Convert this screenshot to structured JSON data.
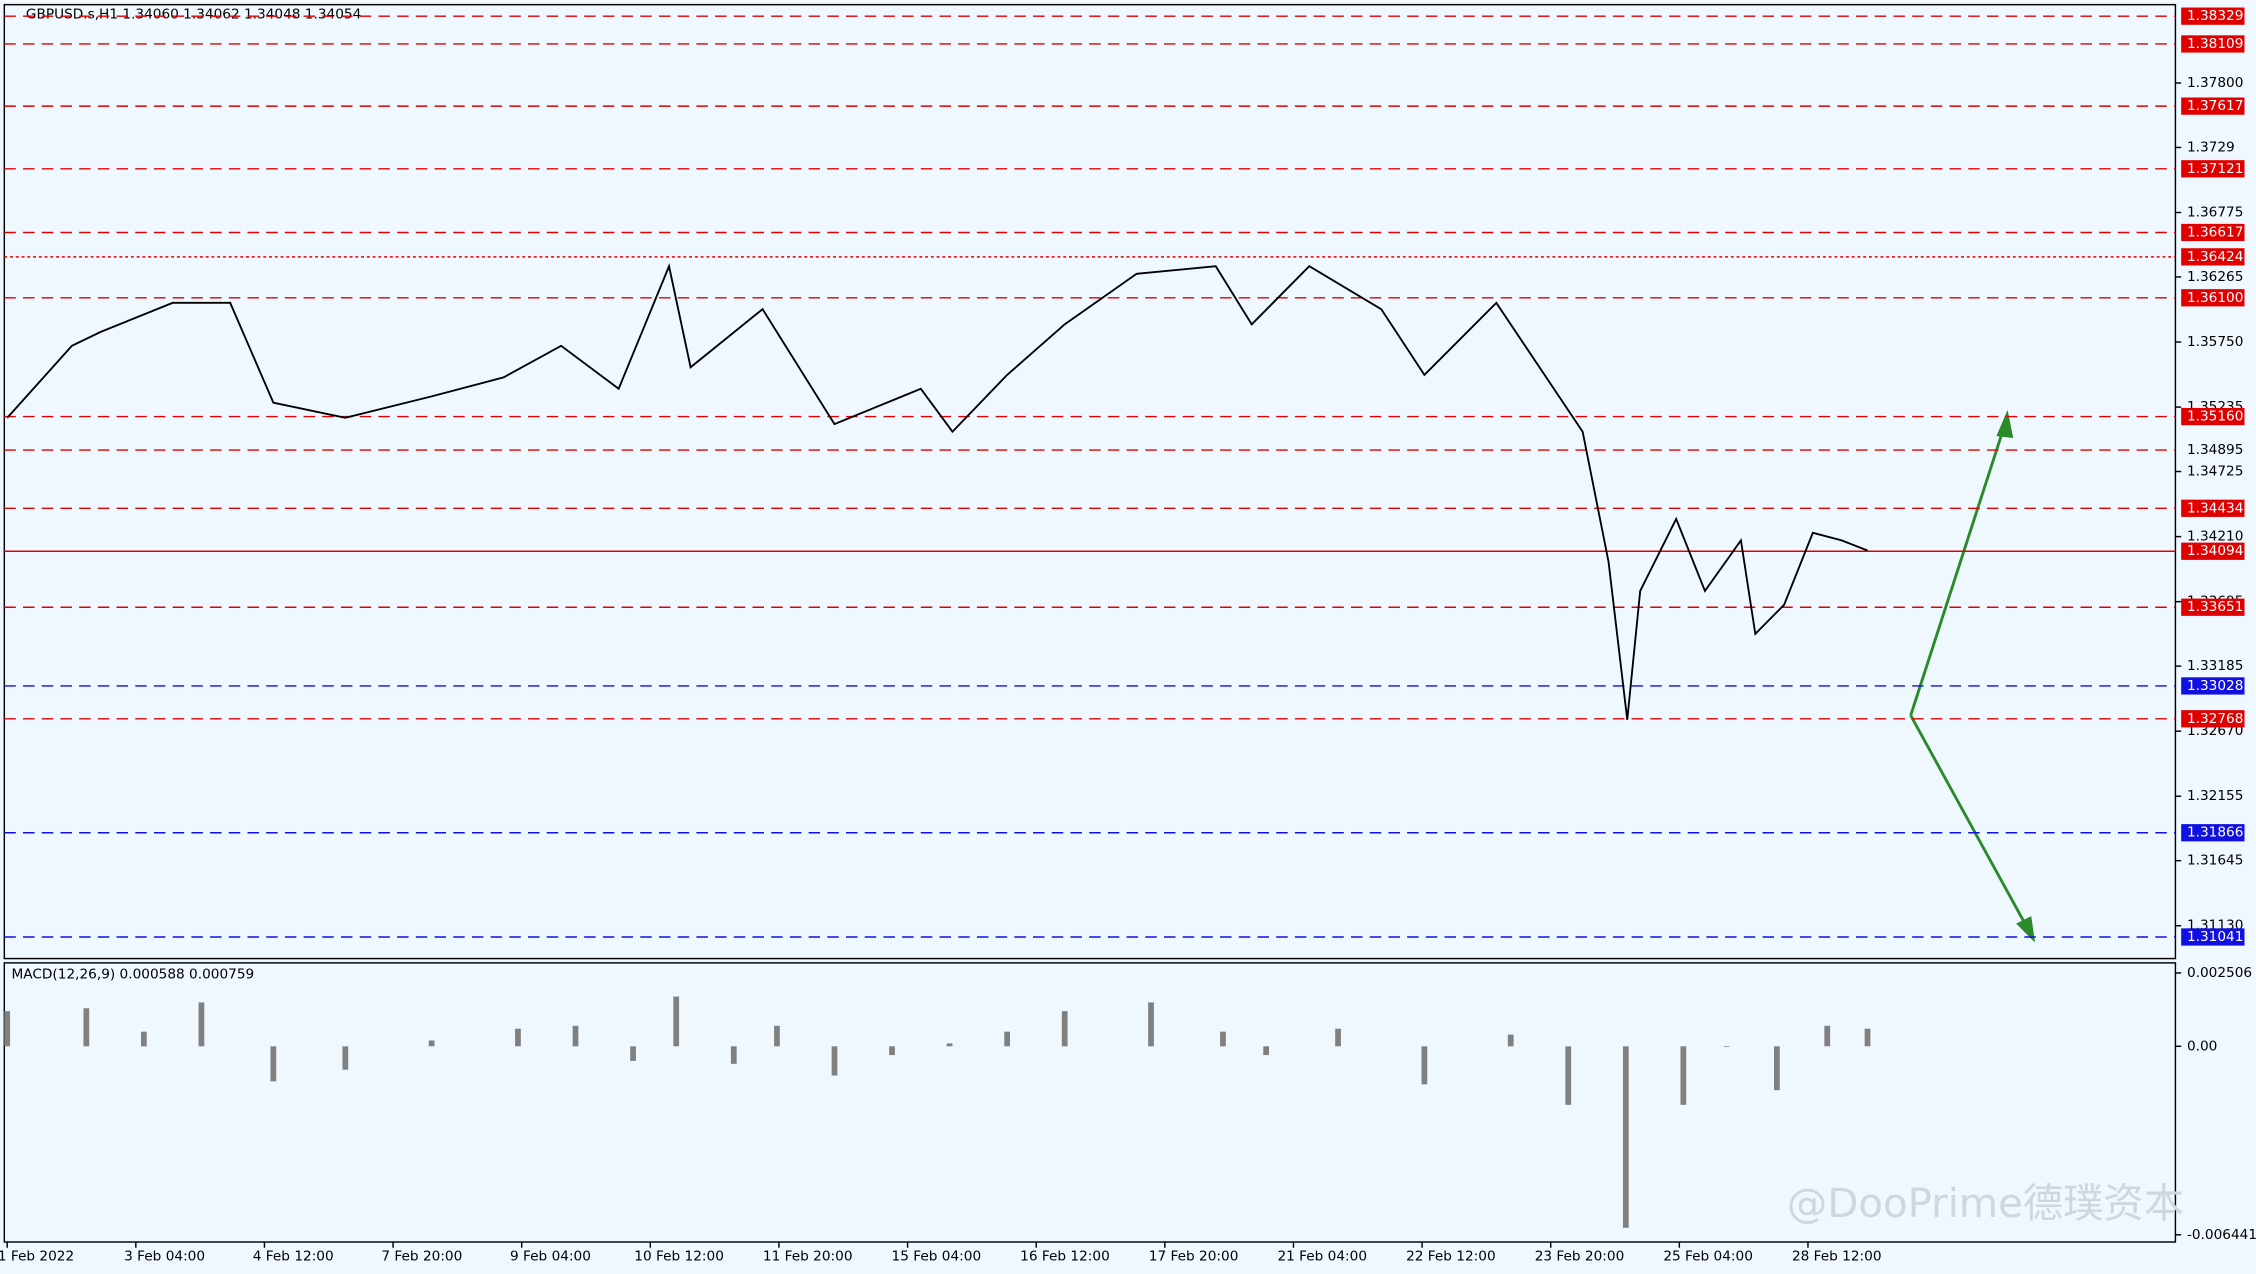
{
  "header": {
    "symbol_info": "GBPUSD.s,H1  1.34060 1.34062 1.34048 1.34054"
  },
  "chart_data": {
    "type": "candlestick-screen",
    "ylim": [
      1.38329,
      1.31041
    ],
    "yticks": [
      {
        "value": 1.378,
        "label": "1.37800"
      },
      1.3729,
      1.36775,
      1.36265,
      {
        "value": 1.3575,
        "label": "1.35750"
      },
      1.35235,
      1.34725,
      {
        "value": 1.3421,
        "label": "1.34210"
      },
      1.33695,
      1.33185,
      {
        "value": 1.3267,
        "label": "1.32670"
      },
      1.32155,
      1.31645,
      {
        "value": 1.3113,
        "label": "1.31130"
      }
    ],
    "levels": [
      {
        "value": 1.38329,
        "label": "1.38329",
        "color": "#e00000",
        "style": "dash"
      },
      {
        "value": 1.38109,
        "label": "1.38109",
        "color": "#e00000",
        "style": "dash"
      },
      {
        "value": 1.37617,
        "label": "1.37617",
        "color": "#e00000",
        "style": "dash"
      },
      {
        "value": 1.37121,
        "label": "1.37121",
        "color": "#e00000",
        "style": "dash"
      },
      {
        "value": 1.36617,
        "label": "1.36617",
        "color": "#e00000",
        "style": "dash"
      },
      {
        "value": 1.36424,
        "label": "1.36424",
        "color": "#e00000",
        "style": "dot"
      },
      {
        "value": 1.361,
        "label": "1.36100",
        "color": "#e00000",
        "style": "dash"
      },
      {
        "value": 1.3516,
        "label": "1.35160",
        "color": "#e00000",
        "style": "dash"
      },
      {
        "value": 1.34895,
        "label": "1.34895",
        "color": "#e00000",
        "style": "dash",
        "box": false
      },
      {
        "value": 1.34434,
        "label": "1.34434",
        "color": "#e00000",
        "style": "dash"
      },
      {
        "value": 1.34094,
        "label": "1.34094",
        "color": "#e00000",
        "style": "solid"
      },
      {
        "value": 1.33651,
        "label": "1.33651",
        "color": "#e00000",
        "style": "dash"
      },
      {
        "value": 1.33028,
        "label": "1.33028",
        "color": "#1010e0",
        "style": "dash"
      },
      {
        "value": 1.32768,
        "label": "1.32768",
        "color": "#e00000",
        "style": "dash"
      },
      {
        "value": 1.31866,
        "label": "1.31866",
        "color": "#1010e0",
        "style": "dash"
      },
      {
        "value": 1.31041,
        "label": "1.31041",
        "color": "#1010e0",
        "style": "dash"
      }
    ],
    "time_labels": [
      "1 Feb 2022",
      "3 Feb 04:00",
      "4 Feb 12:00",
      "7 Feb 20:00",
      "9 Feb 04:00",
      "10 Feb 12:00",
      "11 Feb 20:00",
      "15 Feb 04:00",
      "16 Feb 12:00",
      "17 Feb 20:00",
      "21 Feb 04:00",
      "22 Feb 12:00",
      "23 Feb 20:00",
      "25 Feb 04:00",
      "28 Feb 12:00"
    ],
    "price_path": {
      "x": [
        5,
        50,
        70,
        120,
        160,
        190,
        240,
        300,
        350,
        390,
        430,
        465,
        480,
        530,
        580,
        640,
        662,
        700,
        740,
        790,
        845,
        870,
        910,
        960,
        990,
        1040,
        1060,
        1100,
        1118,
        1131,
        1140,
        1165,
        1185,
        1210,
        1220,
        1240,
        1260,
        1280,
        1298
      ],
      "values": [
        1.3515,
        1.3572,
        1.3583,
        1.3606,
        1.3606,
        1.3527,
        1.3515,
        1.3532,
        1.3547,
        1.3572,
        1.3538,
        1.3635,
        1.3555,
        1.3601,
        1.351,
        1.3538,
        1.3504,
        1.3549,
        1.3589,
        1.3629,
        1.3635,
        1.3589,
        1.3635,
        1.3601,
        1.3549,
        1.3606,
        1.3572,
        1.3504,
        1.3401,
        1.3276,
        1.3378,
        1.3435,
        1.3378,
        1.3418,
        1.3344,
        1.3367,
        1.3424,
        1.3418,
        1.341
      ],
      "color": "#000000"
    },
    "macd": {
      "title": "MACD(12,26,9) 0.000588 0.000759",
      "ylim": [
        0.002506,
        -0.006441
      ],
      "yticks": [
        0.002506,
        {
          "value": 0,
          "label": "0.00"
        },
        -0.006441
      ],
      "x": [
        5,
        60,
        100,
        140,
        190,
        240,
        300,
        360,
        400,
        440,
        470,
        510,
        540,
        580,
        620,
        660,
        700,
        740,
        800,
        850,
        880,
        930,
        990,
        1050,
        1090,
        1130,
        1170,
        1200,
        1235,
        1270,
        1298
      ],
      "values": [
        0.0012,
        0.0013,
        0.0005,
        0.0015,
        -0.0012,
        -0.0008,
        0.0002,
        0.0006,
        0.0007,
        -0.0005,
        0.0017,
        -0.0006,
        0.0007,
        -0.001,
        -0.0003,
        0.0001,
        0.0005,
        0.0012,
        0.0015,
        0.0005,
        -0.0003,
        0.0006,
        -0.0013,
        0.0004,
        -0.002,
        -0.0062,
        -0.002,
        0,
        -0.0015,
        0.0007,
        0.0006
      ],
      "color": "#808080"
    }
  },
  "watermark": "@DooPrime德璞资本"
}
